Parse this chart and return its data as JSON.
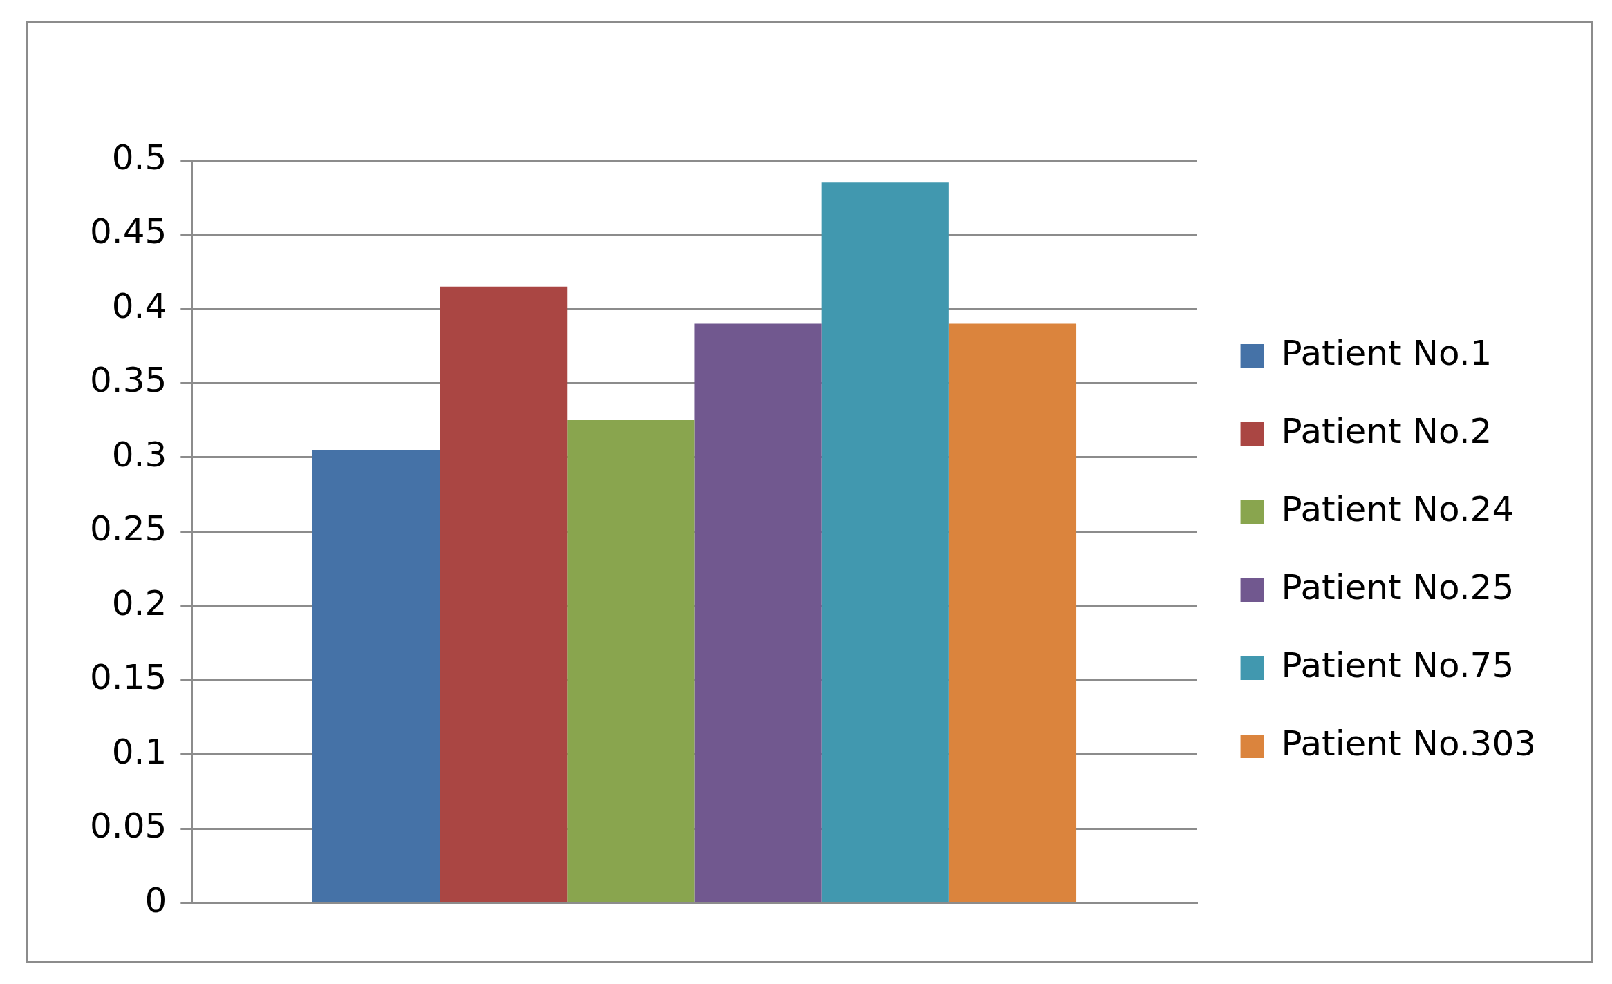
{
  "chart_data": {
    "type": "bar",
    "categories": [
      null
    ],
    "series": [
      {
        "name": "Patient No.1",
        "color": "#4572a7",
        "values": [
          0.305
        ]
      },
      {
        "name": "Patient No.2",
        "color": "#aa4643",
        "values": [
          0.415
        ]
      },
      {
        "name": "Patient No.24",
        "color": "#89a54e",
        "values": [
          0.325
        ]
      },
      {
        "name": "Patient No.25",
        "color": "#71588f",
        "values": [
          0.39
        ]
      },
      {
        "name": "Patient No.75",
        "color": "#4198af",
        "values": [
          0.485
        ]
      },
      {
        "name": "Patient No.303",
        "color": "#db843d",
        "values": [
          0.39
        ]
      }
    ],
    "ylim": [
      0,
      0.5
    ],
    "yticks": [
      0,
      0.05,
      0.1,
      0.15,
      0.2,
      0.25,
      0.3,
      0.35,
      0.4,
      0.45,
      0.5
    ],
    "grid": "y",
    "legend": "right"
  }
}
